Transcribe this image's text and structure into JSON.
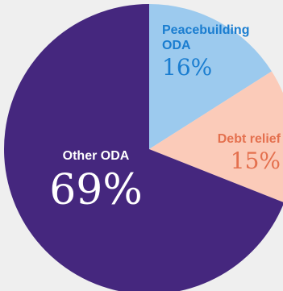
{
  "chart_data": {
    "type": "pie",
    "title": "",
    "start_angle_deg": 0,
    "direction": "clockwise",
    "slices": [
      {
        "label_lines": [
          "Peacebuilding",
          "ODA"
        ],
        "value": 16,
        "value_label": "16%",
        "color": "#9ccaee",
        "label_color": "#1a7dd0",
        "value_color": "#1a7dd0"
      },
      {
        "label_lines": [
          "Debt relief"
        ],
        "value": 15,
        "value_label": "15%",
        "color": "#fbcbb9",
        "label_color": "#e4704e",
        "value_color": "#e4704e"
      },
      {
        "label_lines": [
          "Other ODA"
        ],
        "value": 69,
        "value_label": "69%",
        "color": "#45277e",
        "label_color": "#ffffff",
        "value_color": "#ffffff"
      }
    ]
  }
}
